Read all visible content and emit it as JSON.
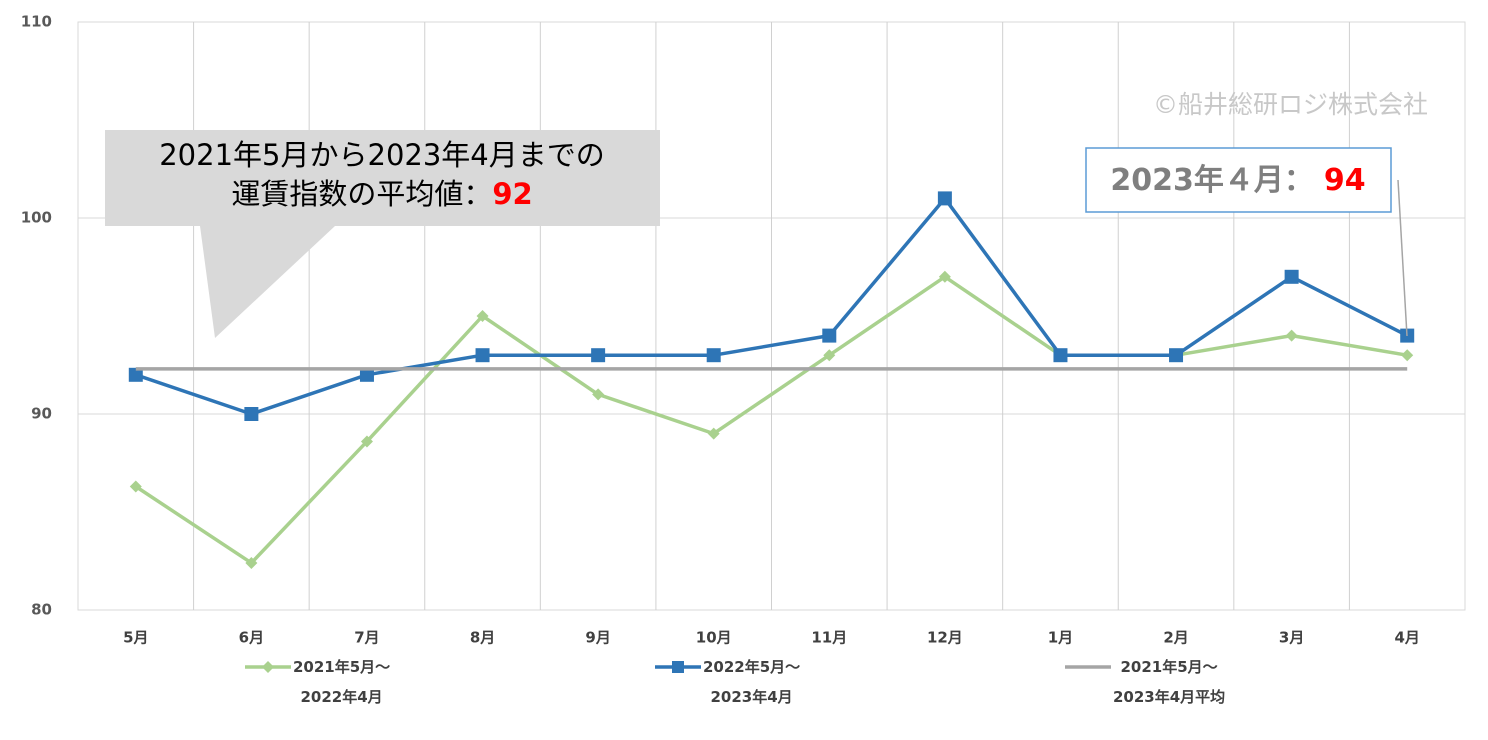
{
  "chart_data": {
    "type": "line",
    "categories": [
      "5月",
      "6月",
      "7月",
      "8月",
      "9月",
      "10月",
      "11月",
      "12月",
      "1月",
      "2月",
      "3月",
      "4月"
    ],
    "series": [
      {
        "name": "2021年5月～\n2022年4月",
        "color": "#a9d18e",
        "marker": "diamond",
        "values": [
          86.3,
          82.4,
          88.6,
          95,
          91,
          89,
          93,
          97,
          93,
          93,
          94,
          93
        ]
      },
      {
        "name": "2022年5月～\n2023年4月",
        "color": "#2e75b6",
        "marker": "square",
        "values": [
          92,
          90,
          92,
          93,
          93,
          93,
          94,
          101,
          93,
          93,
          97,
          94
        ]
      },
      {
        "name": "2021年5月～\n2023年4月平均",
        "color": "#a5a5a5",
        "marker": "none",
        "values": [
          92.3,
          92.3,
          92.3,
          92.3,
          92.3,
          92.3,
          92.3,
          92.3,
          92.3,
          92.3,
          92.3,
          92.3
        ]
      }
    ],
    "ylim": [
      80,
      110
    ],
    "yticks": [
      80,
      90,
      100,
      110
    ],
    "grid": true,
    "watermark": "©船井総研ロジ株式会社",
    "callout_average": {
      "line1": "2021年5月から2023年4月までの",
      "line2": "運賃指数の平均値：",
      "value": 92
    },
    "callout_latest": {
      "label": "2023年４月：",
      "value": 94
    }
  }
}
